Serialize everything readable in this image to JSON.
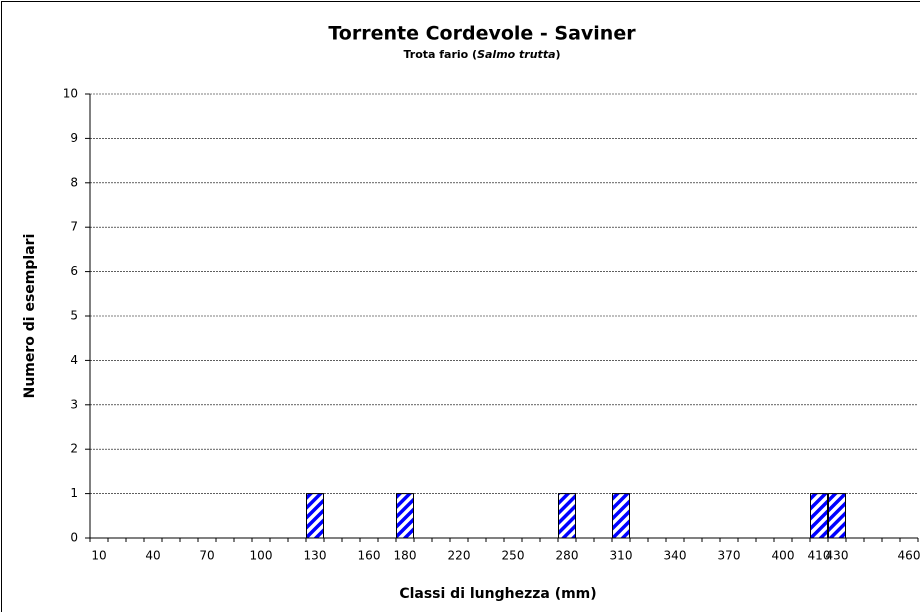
{
  "chart_data": {
    "type": "bar",
    "title": "Torrente Cordevole - Saviner",
    "subtitle": [
      "Trota fario (",
      "Salmo trutta",
      ")"
    ],
    "x_label": "Classi di lunghezza (mm)",
    "y_label": "Numero di esemplari",
    "categories": [
      "10",
      null,
      null,
      "40",
      null,
      null,
      "70",
      null,
      null,
      "100",
      null,
      null,
      "130",
      null,
      null,
      "160",
      null,
      "180",
      null,
      null,
      "220",
      null,
      null,
      "250",
      null,
      null,
      "280",
      null,
      null,
      "310",
      null,
      null,
      "340",
      null,
      null,
      "370",
      null,
      null,
      "400",
      null,
      "410",
      "430",
      null,
      null,
      null,
      "460"
    ],
    "values": [
      0,
      0,
      0,
      0,
      0,
      0,
      0,
      0,
      0,
      0,
      0,
      0,
      1,
      0,
      0,
      0,
      0,
      1,
      0,
      0,
      0,
      0,
      0,
      0,
      0,
      0,
      1,
      0,
      0,
      1,
      0,
      0,
      0,
      0,
      0,
      0,
      0,
      0,
      0,
      0,
      1,
      1,
      0,
      0,
      0,
      0
    ],
    "color": "#0000ff",
    "ylim": [
      0,
      10
    ],
    "yticks": [
      0,
      1,
      2,
      3,
      4,
      5,
      6,
      7,
      8,
      9,
      10
    ],
    "grid": true
  }
}
